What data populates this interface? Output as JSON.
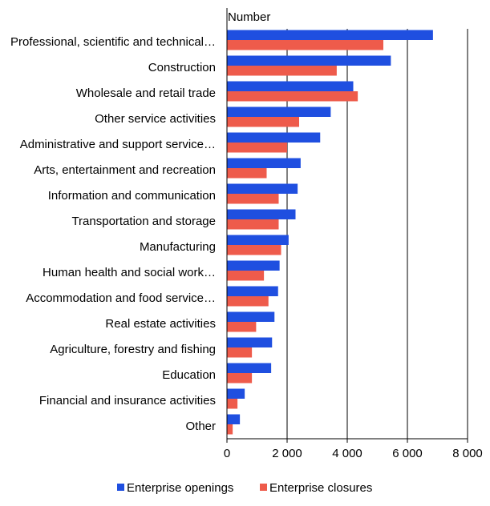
{
  "chart_data": {
    "type": "bar",
    "orientation": "horizontal",
    "title": "",
    "xlabel": "",
    "ylabel": "",
    "axis_unit_label": "Number",
    "xlim": [
      0,
      8000
    ],
    "ticks": [
      0,
      2000,
      4000,
      6000,
      8000
    ],
    "tick_labels": [
      "0",
      "2 000",
      "4 000",
      "6 000",
      "8 000"
    ],
    "grid": "vertical",
    "legend_position": "bottom",
    "categories": [
      "Professional, scientific and technical…",
      "Construction",
      "Wholesale and retail trade",
      "Other service activities",
      "Administrative and support service…",
      "Arts, entertainment and recreation",
      "Information and communication",
      "Transportation and storage",
      "Manufacturing",
      "Human health and social work…",
      "Accommodation and food service…",
      "Real estate activities",
      "Agriculture, forestry and fishing",
      "Education",
      "Financial and insurance activities",
      "Other"
    ],
    "series": [
      {
        "name": "Enterprise openings",
        "color": "#1f4fe0",
        "values": [
          6850,
          5450,
          4200,
          3450,
          3100,
          2450,
          2350,
          2280,
          2050,
          1750,
          1700,
          1580,
          1500,
          1470,
          590,
          430
        ]
      },
      {
        "name": "Enterprise closures",
        "color": "#ee5b4b",
        "values": [
          5200,
          3650,
          4350,
          2400,
          2000,
          1320,
          1720,
          1720,
          1800,
          1230,
          1380,
          970,
          830,
          830,
          350,
          190
        ]
      }
    ]
  }
}
